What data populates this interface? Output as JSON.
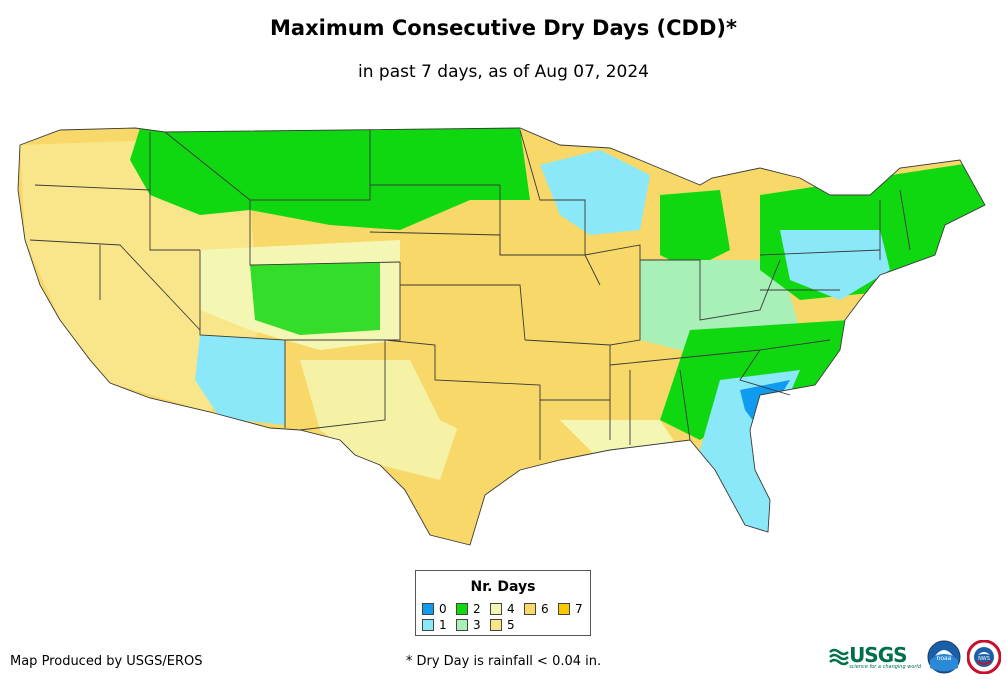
{
  "title": "Maximum Consecutive Dry Days (CDD)*",
  "subtitle": "in past 7 days, as of Aug 07, 2024",
  "legend": {
    "title": "Nr. Days",
    "items": [
      {
        "label": "0",
        "color": "#0f9bf0"
      },
      {
        "label": "1",
        "color": "#8ae8f8"
      },
      {
        "label": "2",
        "color": "#10d810"
      },
      {
        "label": "3",
        "color": "#a8f0b8"
      },
      {
        "label": "4",
        "color": "#f4f7b4"
      },
      {
        "label": "5",
        "color": "#fae68a"
      },
      {
        "label": "6",
        "color": "#f8d868"
      },
      {
        "label": "7",
        "color": "#f8c800"
      }
    ]
  },
  "credit": "Map Produced by USGS/EROS",
  "footnote": "* Dry Day is rainfall < 0.04 in.",
  "logos": {
    "usgs": "USGS",
    "usgs_tagline": "science for a changing world",
    "noaa": "noaa",
    "nws": "NWS"
  },
  "colors": {
    "state_border": "#3a3a3a",
    "ocean": "#ffffff"
  }
}
